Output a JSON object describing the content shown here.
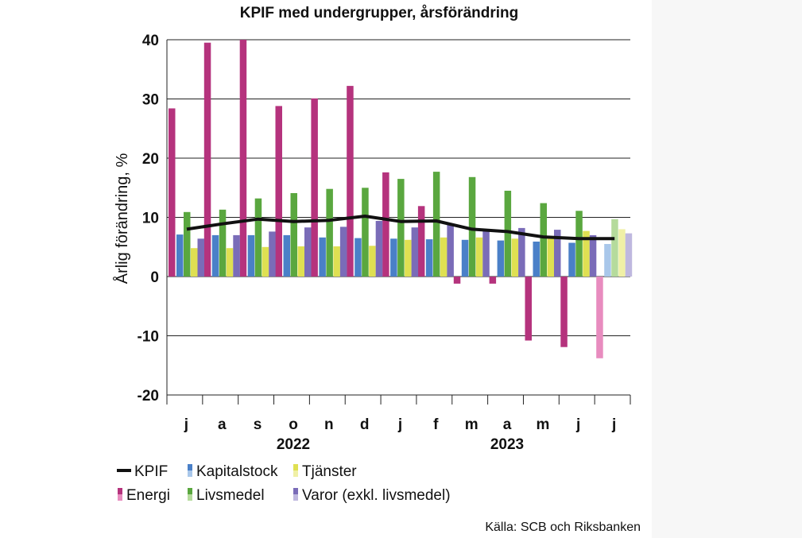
{
  "chart_data": {
    "type": "bar",
    "title": "KPIF med undergrupper, årsförändring",
    "ylabel": "Årlig förändring, %",
    "xlabel": "",
    "ylim": [
      -20,
      40
    ],
    "yticks": [
      -20,
      -10,
      0,
      10,
      20,
      30,
      40
    ],
    "grid": true,
    "categories": [
      "j",
      "a",
      "s",
      "o",
      "n",
      "d",
      "j",
      "f",
      "m",
      "a",
      "m",
      "j",
      "j"
    ],
    "year_labels": [
      {
        "label": "2022",
        "category_index": 3
      },
      {
        "label": "2023",
        "category_index": 9
      }
    ],
    "series": [
      {
        "name": "Energi",
        "type": "bar",
        "color": "#b5337d",
        "light_color": "#e88cbf",
        "values": [
          28.4,
          39.5,
          40.0,
          28.8,
          30.1,
          32.2,
          17.6,
          11.9,
          -1.2,
          -1.2,
          -10.8,
          -11.9,
          -13.8
        ]
      },
      {
        "name": "Livsmedel",
        "type": "bar",
        "color": "#5aa73f",
        "light_color": "#b5db9c",
        "values": [
          10.9,
          11.3,
          13.2,
          14.1,
          14.8,
          15.0,
          16.5,
          17.7,
          16.8,
          14.5,
          12.4,
          11.1,
          9.7
        ]
      },
      {
        "name": "Kapitalstock",
        "type": "bar",
        "color": "#4a80c8",
        "light_color": "#a9c7ea",
        "values": [
          7.1,
          7.0,
          7.0,
          7.0,
          6.6,
          6.5,
          6.4,
          6.3,
          6.2,
          6.1,
          5.9,
          5.7,
          5.5
        ]
      },
      {
        "name": "Tjänster",
        "type": "bar",
        "color": "#dfe052",
        "light_color": "#f0f0a6",
        "values": [
          4.8,
          4.8,
          5.0,
          5.1,
          5.1,
          5.2,
          6.2,
          6.6,
          6.6,
          6.4,
          6.4,
          7.7,
          8.0
        ]
      },
      {
        "name": "Varor (exkl. livsmedel)",
        "type": "bar",
        "color": "#7a6cb8",
        "light_color": "#bfb8df",
        "values": [
          6.4,
          7.0,
          7.6,
          8.3,
          8.4,
          9.4,
          8.3,
          8.8,
          7.9,
          8.2,
          7.9,
          7.0,
          7.3
        ]
      },
      {
        "name": "KPIF",
        "type": "line",
        "color": "#111111",
        "values": [
          8.0,
          8.9,
          9.7,
          9.3,
          9.5,
          10.2,
          9.3,
          9.4,
          8.0,
          7.6,
          6.7,
          6.4,
          6.4
        ]
      }
    ],
    "source": "Källa: SCB och Riksbanken"
  },
  "legend": {
    "rows": [
      [
        {
          "label": "KPIF",
          "key": "KPIF"
        },
        {
          "label": "Kapitalstock",
          "key": "Kapitalstock"
        },
        {
          "label": "Tjänster",
          "key": "Tjänster"
        }
      ],
      [
        {
          "label": "Energi",
          "key": "Energi"
        },
        {
          "label": "Livsmedel",
          "key": "Livsmedel"
        },
        {
          "label": "Varor (exkl. livsmedel)",
          "key": "Varor (exkl. livsmedel)"
        }
      ]
    ]
  }
}
